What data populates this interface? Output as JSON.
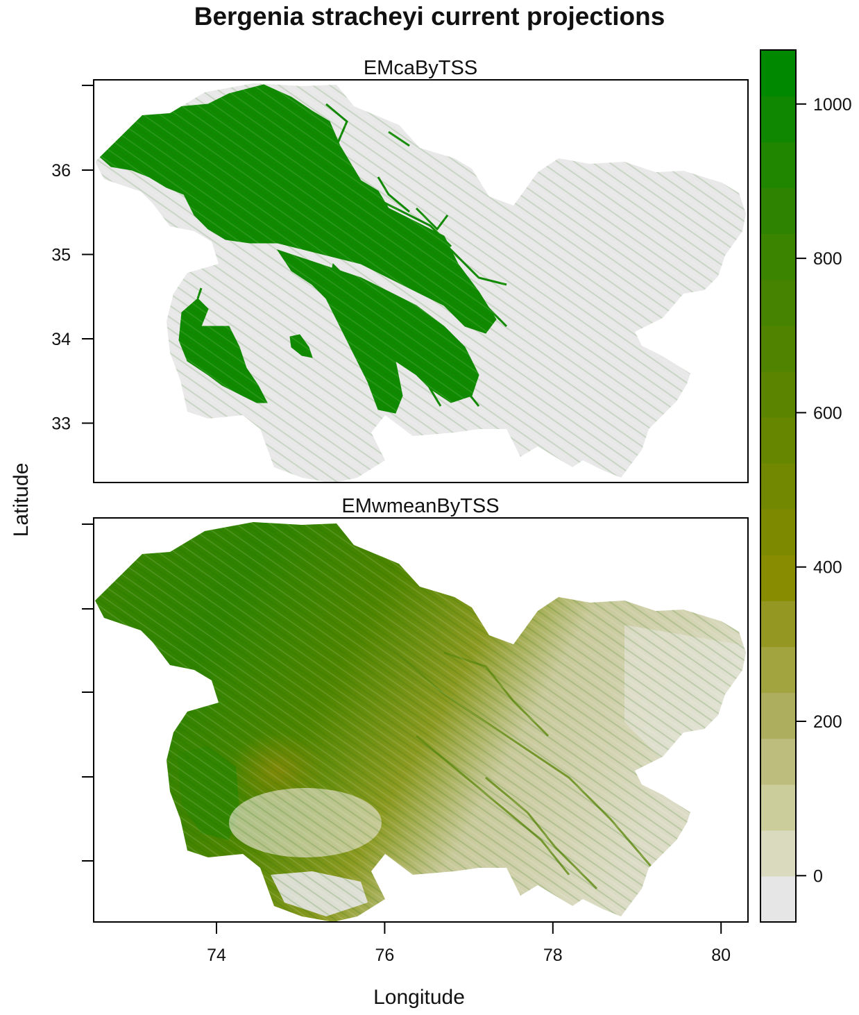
{
  "title": "Bergenia stracheyi current projections",
  "xlabel": "Longitude",
  "ylabel": "Latitude",
  "panels": [
    {
      "title": "EMcaByTSS"
    },
    {
      "title": "EMwmeanByTSS"
    }
  ],
  "x_ticks": [
    "74",
    "76",
    "78",
    "80"
  ],
  "y_ticks": [
    "36",
    "35",
    "34",
    "33"
  ],
  "legend": {
    "ticks": [
      "1000",
      "800",
      "600",
      "400",
      "200",
      "0"
    ],
    "range": [
      -60,
      1070
    ],
    "colors": [
      "#e6e6e6",
      "#dadbbe",
      "#cbcd9b",
      "#bdbd7d",
      "#aeaf5e",
      "#a1a43f",
      "#949722",
      "#888c00",
      "#7d8a00",
      "#728800",
      "#678600",
      "#5b8500",
      "#508300",
      "#458300",
      "#3a8400",
      "#2e8400",
      "#208600",
      "#108700",
      "#008800"
    ]
  },
  "colors": {
    "background_land": "#e8e8e8",
    "presence": "#108a00",
    "frame": "#000000"
  },
  "chart_data": {
    "type": "heatmap",
    "title": "Bergenia stracheyi current projections",
    "xlabel": "Longitude",
    "ylabel": "Latitude",
    "xlim": [
      72.5,
      80.3
    ],
    "ylim": [
      32.3,
      37.0
    ],
    "x_ticks": [
      74,
      76,
      78,
      80
    ],
    "y_ticks": [
      33,
      34,
      35,
      36
    ],
    "value_range": [
      0,
      1000
    ],
    "legend_ticks": [
      0,
      200,
      400,
      600,
      800,
      1000
    ],
    "panels": [
      "EMcaByTSS",
      "EMwmeanByTSS"
    ]
  }
}
